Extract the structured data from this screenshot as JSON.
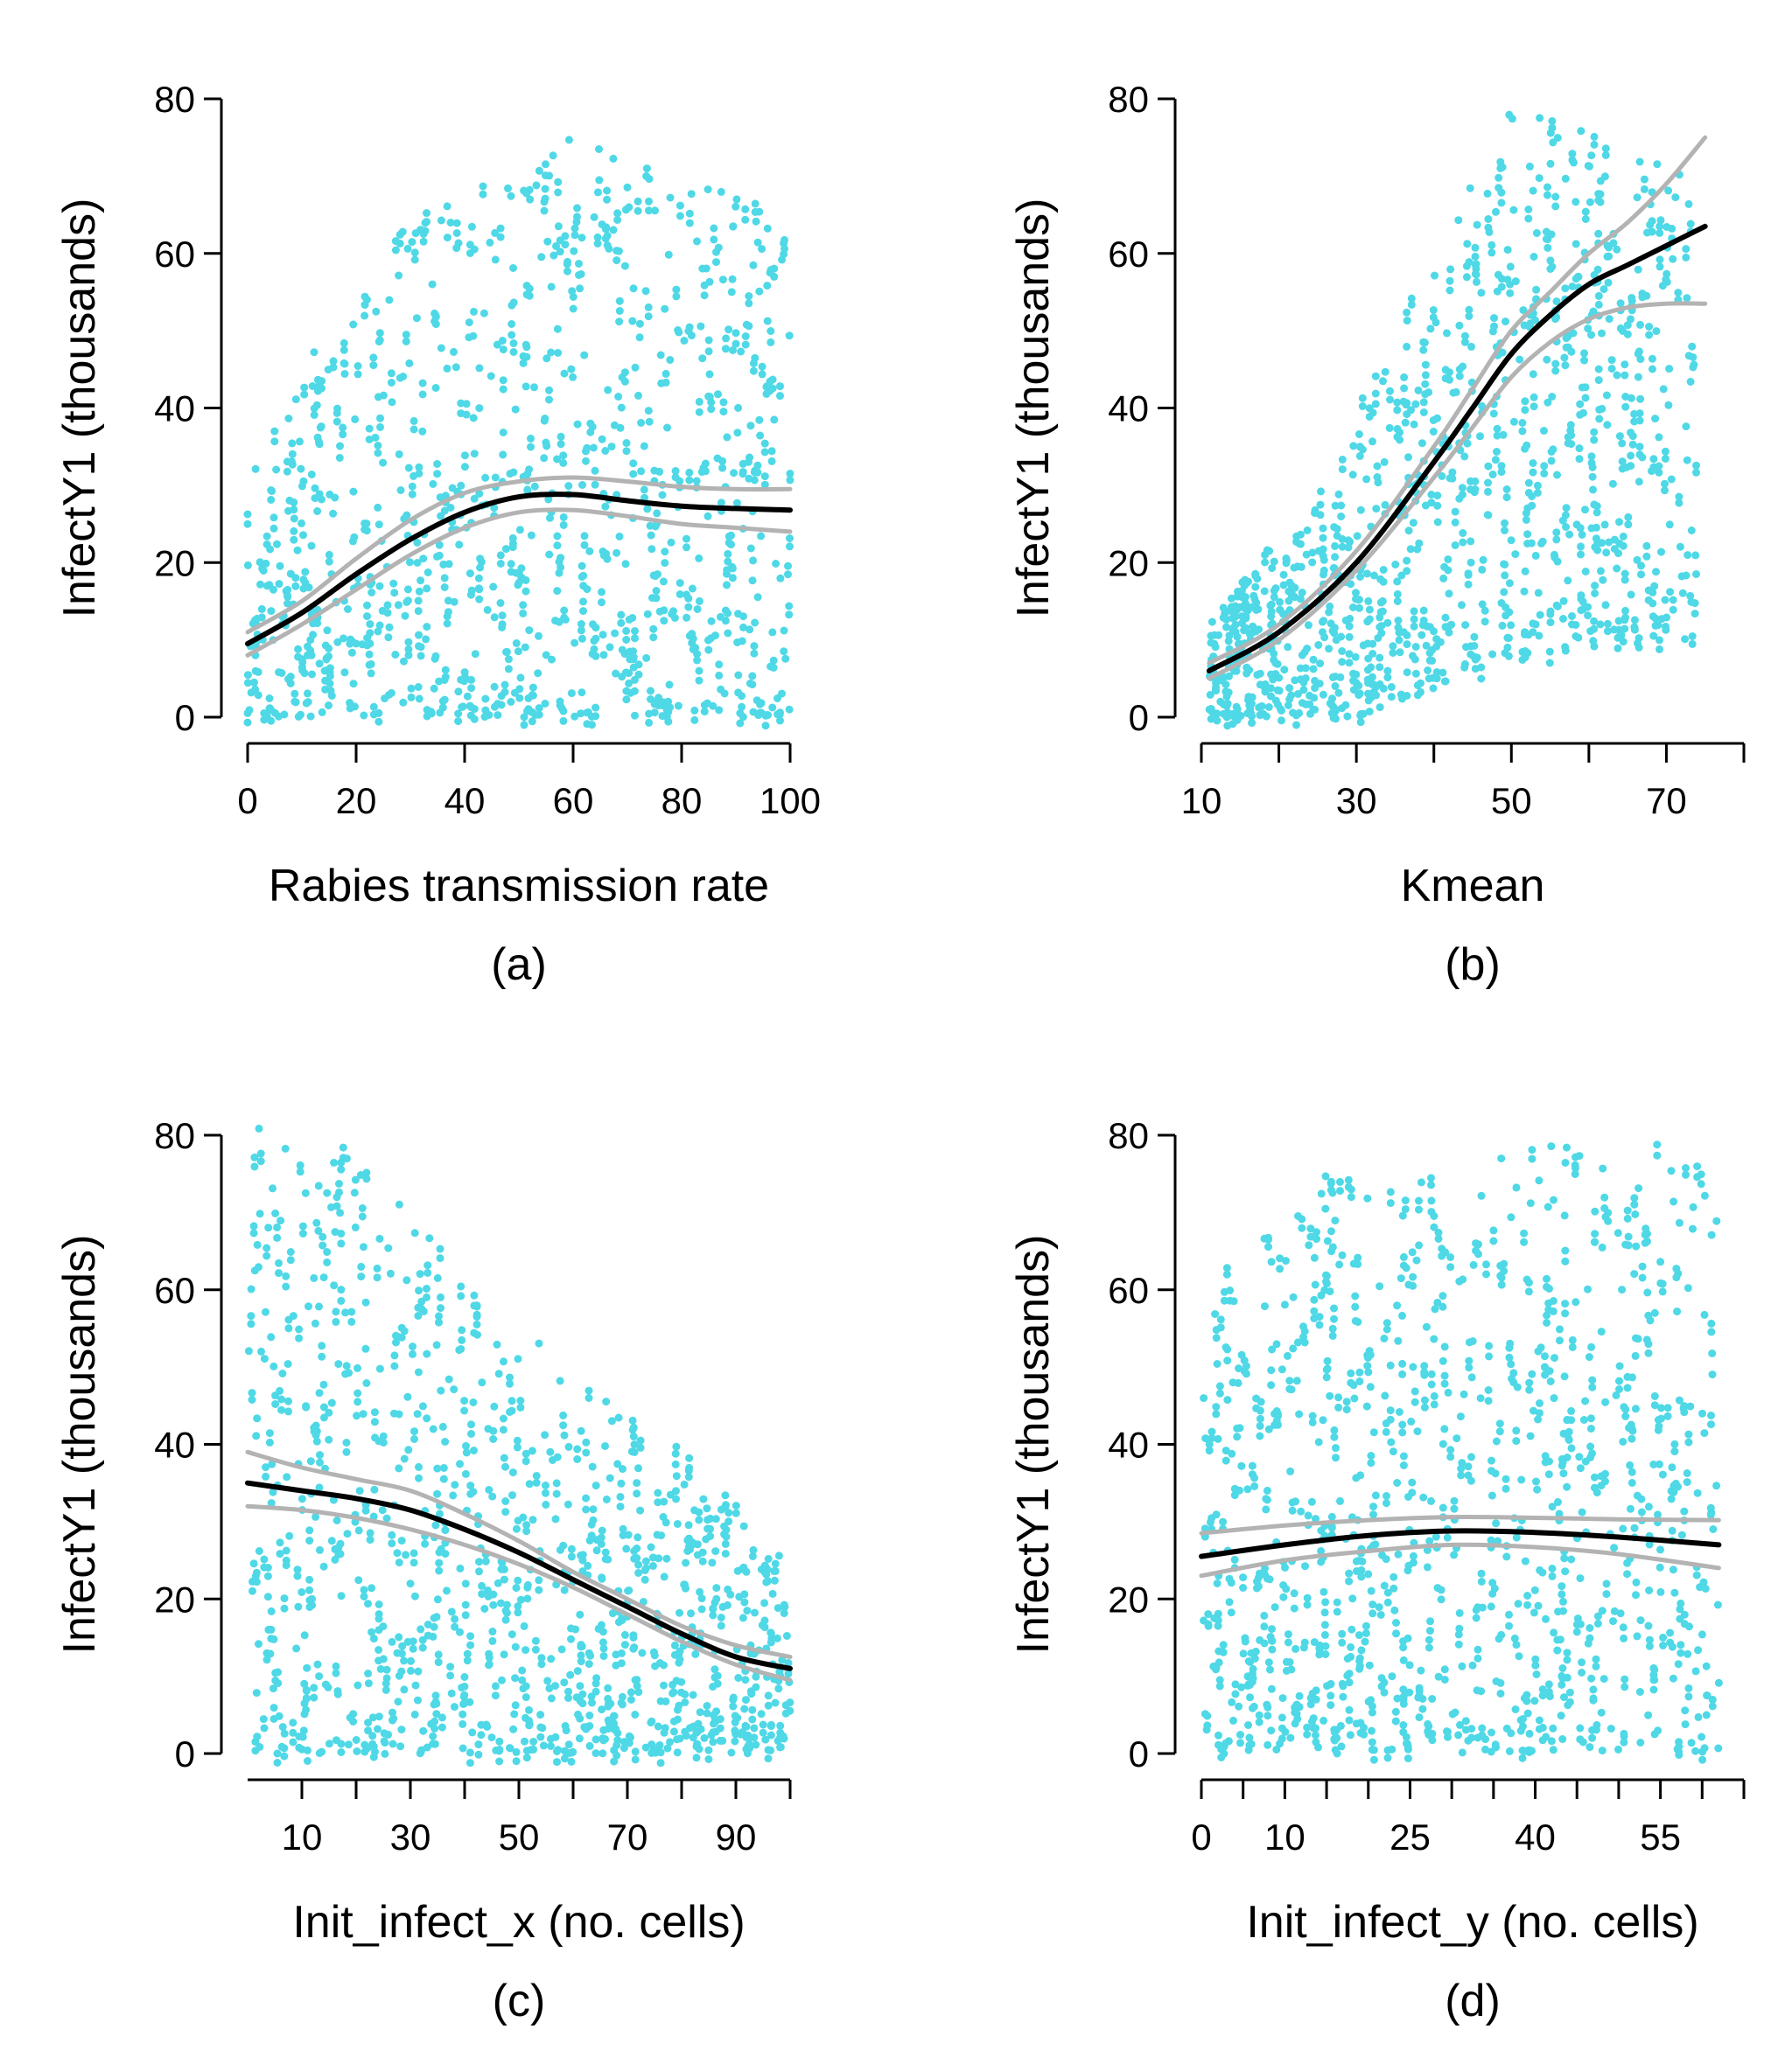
{
  "chart_data": [
    {
      "type": "scatter",
      "panel_label": "(a)",
      "xlabel": "Rabies transmission rate",
      "ylabel": "InfectY1 (thousands)",
      "xlim": [
        0,
        100
      ],
      "ylim": [
        0,
        80
      ],
      "xticks": [
        0,
        20,
        40,
        60,
        80,
        100
      ],
      "xtick_labels": [
        "0",
        "20",
        "40",
        "60",
        "80",
        "100"
      ],
      "xtick_marks": [
        0,
        20,
        40,
        60,
        80,
        100
      ],
      "yticks": [
        0,
        20,
        40,
        60,
        80
      ],
      "ytick_labels": [
        "0",
        "20",
        "40",
        "60",
        "80"
      ],
      "points": {
        "x_min": 0,
        "x_max": 100,
        "y_min": 0,
        "y_max": 82,
        "lower_trend": [
          [
            0,
            0
          ],
          [
            15,
            0
          ],
          [
            40,
            0
          ],
          [
            100,
            0
          ]
        ],
        "upper_trend": [
          [
            0,
            30
          ],
          [
            10,
            45
          ],
          [
            30,
            65
          ],
          [
            60,
            75
          ],
          [
            100,
            65
          ]
        ],
        "count": 900,
        "seed": 11
      },
      "series": [
        {
          "role": "fit",
          "x": [
            0,
            10,
            20,
            30,
            40,
            50,
            60,
            70,
            80,
            90,
            100
          ],
          "y": [
            9.5,
            13.5,
            18.5,
            23,
            26.5,
            28.5,
            28.8,
            28,
            27.3,
            27,
            26.8
          ]
        },
        {
          "role": "upper-ci",
          "x": [
            0,
            10,
            20,
            30,
            40,
            50,
            60,
            70,
            80,
            90,
            100
          ],
          "y": [
            11,
            15,
            20.5,
            25.5,
            29,
            30.5,
            31,
            30.5,
            29.8,
            29.5,
            29.5
          ]
        },
        {
          "role": "lower-ci",
          "x": [
            0,
            10,
            20,
            30,
            40,
            50,
            60,
            70,
            80,
            90,
            100
          ],
          "y": [
            8,
            12,
            16.5,
            21,
            24.5,
            26.5,
            26.8,
            26,
            25,
            24.5,
            24
          ]
        }
      ],
      "grid": false,
      "legend": "none",
      "point_color": "#4fd8e6",
      "fit_color": "#000000",
      "ci_color": "#b3b3b3"
    },
    {
      "type": "scatter",
      "panel_label": "(b)",
      "xlabel": "Kmean",
      "ylabel": "InfectY1 (thousands)",
      "xlim": [
        10,
        80
      ],
      "ylim": [
        0,
        80
      ],
      "xticks": [
        10,
        30,
        50,
        70
      ],
      "xtick_labels": [
        "10",
        "30",
        "50",
        "70"
      ],
      "xtick_marks": [
        10,
        20,
        30,
        40,
        50,
        60,
        70,
        80
      ],
      "yticks": [
        0,
        20,
        40,
        60,
        80
      ],
      "ytick_labels": [
        "0",
        "20",
        "40",
        "60",
        "80"
      ],
      "points": {
        "x_min": 11,
        "x_max": 74,
        "y_min": 0,
        "y_max": 82,
        "lower_trend": [
          [
            11,
            0
          ],
          [
            30,
            0
          ],
          [
            50,
            8
          ],
          [
            74,
            10
          ]
        ],
        "upper_trend": [
          [
            11,
            12
          ],
          [
            25,
            30
          ],
          [
            40,
            60
          ],
          [
            50,
            80
          ],
          [
            74,
            70
          ]
        ],
        "count": 900,
        "seed": 23
      },
      "series": [
        {
          "role": "fit",
          "x": [
            11,
            20,
            30,
            40,
            45,
            50,
            55,
            60,
            65,
            70,
            75
          ],
          "y": [
            6,
            11,
            20,
            33,
            40,
            47,
            52,
            56,
            58.5,
            61,
            63.5
          ]
        },
        {
          "role": "upper-ci",
          "x": [
            11,
            20,
            30,
            40,
            45,
            50,
            55,
            60,
            65,
            70,
            75
          ],
          "y": [
            7,
            12,
            21.5,
            35,
            42.5,
            50,
            55,
            60,
            64,
            69,
            75
          ]
        },
        {
          "role": "lower-ci",
          "x": [
            11,
            20,
            30,
            40,
            45,
            50,
            55,
            60,
            65,
            70,
            75
          ],
          "y": [
            5,
            10,
            19,
            31,
            37.5,
            44,
            48.5,
            51.5,
            53,
            53.5,
            53.5
          ]
        }
      ],
      "grid": false,
      "legend": "none",
      "point_color": "#4fd8e6",
      "fit_color": "#000000",
      "ci_color": "#b3b3b3"
    },
    {
      "type": "scatter",
      "panel_label": "(c)",
      "xlabel": "Init_infect_x (no. cells)",
      "ylabel": "InfectY1 (thousands)",
      "xlim": [
        0,
        100
      ],
      "ylim": [
        0,
        80
      ],
      "xticks": [
        10,
        30,
        50,
        70,
        90
      ],
      "xtick_labels": [
        "10",
        "30",
        "50",
        "70",
        "90"
      ],
      "xtick_marks": [
        10,
        20,
        30,
        40,
        50,
        60,
        70,
        80,
        90,
        100
      ],
      "yticks": [
        0,
        20,
        40,
        60,
        80
      ],
      "ytick_labels": [
        "0",
        "20",
        "40",
        "60",
        "80"
      ],
      "points": {
        "x_min": 0,
        "x_max": 100,
        "y_min": 0,
        "y_max": 82,
        "lower_trend": [
          [
            0,
            0
          ],
          [
            100,
            0
          ]
        ],
        "upper_trend": [
          [
            0,
            82
          ],
          [
            20,
            78
          ],
          [
            50,
            55
          ],
          [
            80,
            40
          ],
          [
            100,
            25
          ]
        ],
        "count": 900,
        "seed": 37
      },
      "series": [
        {
          "role": "fit",
          "x": [
            0,
            10,
            20,
            30,
            40,
            50,
            60,
            70,
            80,
            90,
            100
          ],
          "y": [
            35,
            34,
            33,
            31.5,
            29,
            26,
            22.5,
            19,
            15.5,
            12.5,
            11
          ]
        },
        {
          "role": "upper-ci",
          "x": [
            0,
            10,
            20,
            30,
            40,
            50,
            60,
            70,
            80,
            90,
            100
          ],
          "y": [
            39,
            37,
            35.5,
            34,
            31,
            27.5,
            23.5,
            20,
            16.5,
            14,
            12.5
          ]
        },
        {
          "role": "lower-ci",
          "x": [
            0,
            10,
            20,
            30,
            40,
            50,
            60,
            70,
            80,
            90,
            100
          ],
          "y": [
            32,
            31.5,
            30.5,
            29,
            27,
            24.5,
            21.5,
            18,
            14.5,
            11.5,
            9.5
          ]
        }
      ],
      "grid": false,
      "legend": "none",
      "point_color": "#4fd8e6",
      "fit_color": "#000000",
      "ci_color": "#b3b3b3"
    },
    {
      "type": "scatter",
      "panel_label": "(d)",
      "xlabel": "Init_infect_y (no. cells)",
      "ylabel": "InfectY1 (thousands)",
      "xlim": [
        0,
        65
      ],
      "ylim": [
        0,
        80
      ],
      "xticks": [
        0,
        10,
        25,
        40,
        55
      ],
      "xtick_labels": [
        "0",
        "10",
        "25",
        "40",
        "55"
      ],
      "xtick_marks": [
        0,
        5,
        10,
        15,
        20,
        25,
        30,
        35,
        40,
        45,
        50,
        55,
        60,
        65
      ],
      "yticks": [
        0,
        20,
        40,
        60,
        80
      ],
      "ytick_labels": [
        "0",
        "20",
        "40",
        "60",
        "80"
      ],
      "points": {
        "x_min": 0,
        "x_max": 62,
        "y_min": 0,
        "y_max": 82,
        "lower_trend": [
          [
            0,
            0
          ],
          [
            62,
            0
          ]
        ],
        "upper_trend": [
          [
            0,
            60
          ],
          [
            15,
            75
          ],
          [
            35,
            78
          ],
          [
            55,
            80
          ],
          [
            62,
            75
          ]
        ],
        "count": 900,
        "seed": 53
      },
      "series": [
        {
          "role": "fit",
          "x": [
            0,
            10,
            20,
            30,
            40,
            50,
            62
          ],
          "y": [
            25.5,
            27,
            28.2,
            28.8,
            28.6,
            28,
            27
          ]
        },
        {
          "role": "upper-ci",
          "x": [
            0,
            10,
            20,
            30,
            40,
            50,
            62
          ],
          "y": [
            28.5,
            29.5,
            30.2,
            30.6,
            30.5,
            30.3,
            30.2
          ]
        },
        {
          "role": "lower-ci",
          "x": [
            0,
            10,
            20,
            30,
            40,
            50,
            62
          ],
          "y": [
            23,
            25,
            26.2,
            27,
            26.7,
            25.8,
            24
          ]
        }
      ],
      "grid": false,
      "legend": "none",
      "point_color": "#4fd8e6",
      "fit_color": "#000000",
      "ci_color": "#b3b3b3"
    }
  ]
}
